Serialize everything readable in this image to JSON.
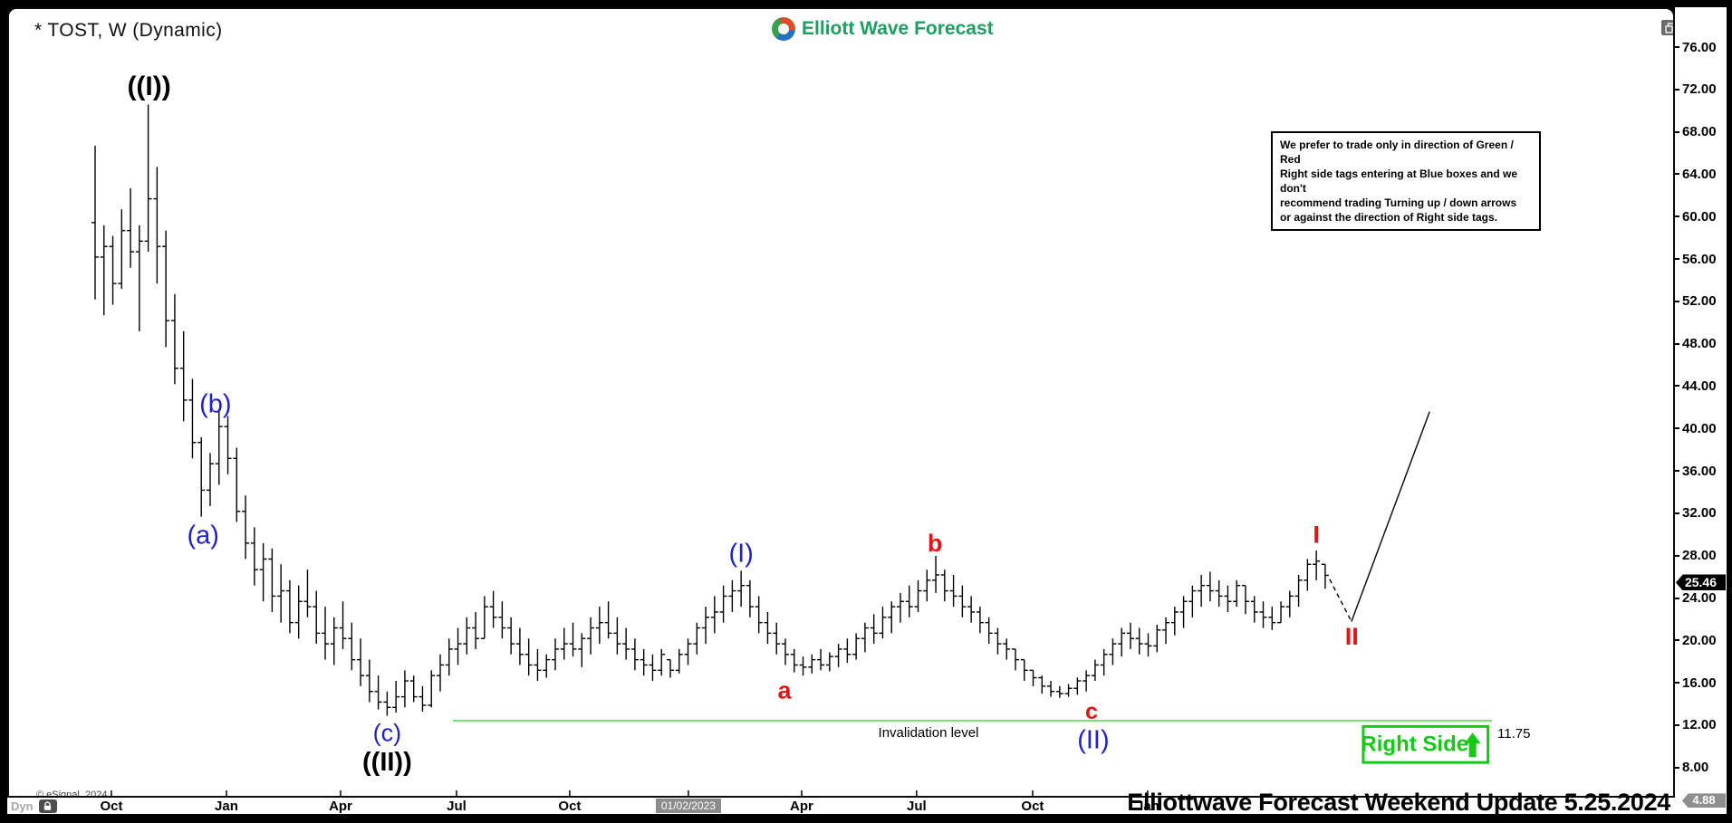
{
  "window": {
    "title": "* TOST, W (Dynamic)",
    "brand": "Elliott Wave Forecast",
    "copyright": "© eSignal, 2024",
    "tab_label": "Dyn",
    "footer_note": "Elliottwave Forecast Weekend Update 5.25.2024"
  },
  "info_box": {
    "lines": [
      "We prefer to trade only in direction of Green / Red",
      "Right side tags entering at Blue boxes and we don't",
      "recommend trading Turning up / down arrows",
      "or against the direction of Right side tags."
    ]
  },
  "annotations": {
    "invalidation_label": "Invalidation level",
    "invalidation_price_label": "11.75",
    "right_side_label": "Right Side",
    "last_price": "25.46",
    "low_badge": "4.88",
    "crosshair_date": "01/02/2023"
  },
  "colors": {
    "blue": "#2121cc",
    "red": "#e61414",
    "black": "#000000",
    "green_line": "#55dd55",
    "green_box": "#16c916",
    "brand": "#1f9e63",
    "logo_g": "#35a14c",
    "logo_r": "#d94f2b",
    "logo_b": "#2272bd",
    "bar": "#000000"
  },
  "wave_labels": [
    {
      "text": "((I))",
      "week": 6.1,
      "price": 71.6,
      "color": "black",
      "size": 30,
      "weight": 600
    },
    {
      "text": "(b)",
      "week": 13.6,
      "price": 41.6,
      "color": "blue",
      "size": 29,
      "weight": 400
    },
    {
      "text": "(a)",
      "week": 12.2,
      "price": 29.2,
      "color": "blue",
      "size": 29,
      "weight": 400
    },
    {
      "text": "(c)",
      "week": 33.0,
      "price": 10.6,
      "color": "blue",
      "size": 27,
      "weight": 400
    },
    {
      "text": "((II))",
      "week": 33.0,
      "price": 7.8,
      "color": "black",
      "size": 29,
      "weight": 600
    },
    {
      "text": "(I)",
      "week": 73.0,
      "price": 27.5,
      "color": "blue",
      "size": 29,
      "weight": 400
    },
    {
      "text": "a",
      "week": 77.9,
      "price": 14.6,
      "color": "red",
      "size": 27,
      "weight": 700
    },
    {
      "text": "b",
      "week": 94.9,
      "price": 28.5,
      "color": "red",
      "size": 27,
      "weight": 700
    },
    {
      "text": "c",
      "week": 112.6,
      "price": 12.6,
      "color": "red",
      "size": 25,
      "weight": 700
    },
    {
      "text": "(II)",
      "week": 112.8,
      "price": 9.9,
      "color": "blue",
      "size": 29,
      "weight": 400
    },
    {
      "text": "I",
      "week": 138.0,
      "price": 29.3,
      "color": "red",
      "size": 27,
      "weight": 700
    },
    {
      "text": "II",
      "week": 142.0,
      "price": 19.7,
      "color": "red",
      "size": 27,
      "weight": 700
    }
  ],
  "chart_data": {
    "type": "bar",
    "subtype": "ohlc-weekly",
    "symbol": "TOST",
    "timeframe": "W (Dynamic)",
    "ylim": [
      4.5,
      78
    ],
    "y_ticks": [
      76,
      72,
      68,
      64,
      60,
      56,
      52,
      48,
      44,
      40,
      36,
      32,
      28,
      24,
      20,
      16,
      12,
      8
    ],
    "x_ticks": [
      {
        "label": "Oct",
        "week": 1.84
      },
      {
        "label": "Jan",
        "week": 14.84
      },
      {
        "label": "Apr",
        "week": 27.74
      },
      {
        "label": "Jul",
        "week": 40.84
      },
      {
        "label": "Oct",
        "week": 53.63
      },
      {
        "label": "01/02/2023",
        "week": 67.04,
        "badge": true
      },
      {
        "label": "Apr",
        "week": 79.84
      },
      {
        "label": "Jul",
        "week": 92.83
      },
      {
        "label": "Oct",
        "week": 105.94
      },
      {
        "label": "Jan",
        "week": 118.94
      }
    ],
    "last_close": 25.46,
    "low_marker": 4.88,
    "invalidation": {
      "price": 11.75,
      "week_start": 40.4,
      "week_end": 157.85
    },
    "invalidation_text_week": 88.5,
    "projection": {
      "dashed": [
        [
          139.5,
          25.1
        ],
        [
          141.97,
          21.1
        ]
      ],
      "solid": [
        [
          141.97,
          21.1
        ],
        [
          150.8,
          40.9
        ]
      ]
    },
    "right_side_box": {
      "week_start": 143.3,
      "week_end": 157.4,
      "price_top": 11.2,
      "price_bottom": 7.8
    },
    "bars_format": [
      "high",
      "low",
      "close"
    ],
    "bars": [
      [
        66,
        51.5,
        55.5
      ],
      [
        58.5,
        50,
        56.5
      ],
      [
        57.5,
        51,
        53
      ],
      [
        60,
        52.5,
        58
      ],
      [
        62,
        54.5,
        56
      ],
      [
        58.5,
        48.5,
        57
      ],
      [
        69.9,
        56,
        61
      ],
      [
        64,
        53,
        56.5
      ],
      [
        58,
        47,
        49.5
      ],
      [
        52,
        43.5,
        45
      ],
      [
        48.5,
        40,
        42
      ],
      [
        44,
        36.5,
        38
      ],
      [
        38.5,
        31,
        33.5
      ],
      [
        37,
        32,
        36
      ],
      [
        41,
        34,
        39.5
      ],
      [
        40.5,
        35,
        36.5
      ],
      [
        37.5,
        30.5,
        31.5
      ],
      [
        33,
        27,
        28.5
      ],
      [
        30,
        24.5,
        26
      ],
      [
        28.5,
        23,
        27
      ],
      [
        28,
        22,
        23.5
      ],
      [
        26.5,
        21,
        24
      ],
      [
        25,
        20,
        21
      ],
      [
        24.5,
        19.5,
        23
      ],
      [
        26,
        21.5,
        22.5
      ],
      [
        24,
        19,
        20
      ],
      [
        22.5,
        17.5,
        19
      ],
      [
        21.5,
        17,
        20.5
      ],
      [
        23,
        18.5,
        19.5
      ],
      [
        21,
        16.5,
        17.5
      ],
      [
        19.5,
        15,
        16
      ],
      [
        17.5,
        13.5,
        14.5
      ],
      [
        16,
        12.8,
        13.5
      ],
      [
        14.5,
        12.2,
        13
      ],
      [
        15.5,
        12.5,
        14
      ],
      [
        16.5,
        13,
        15.5
      ],
      [
        16,
        13.5,
        14
      ],
      [
        15,
        12.6,
        13.2
      ],
      [
        16.5,
        13,
        16
      ],
      [
        18,
        14.5,
        17
      ],
      [
        19.5,
        16,
        18.5
      ],
      [
        20.5,
        17,
        19
      ],
      [
        21.5,
        18,
        20.5
      ],
      [
        22,
        18.5,
        19.5
      ],
      [
        23.5,
        19.5,
        22.5
      ],
      [
        24,
        20.5,
        21.5
      ],
      [
        23,
        19.5,
        20.5
      ],
      [
        21.5,
        18,
        19
      ],
      [
        20.5,
        17,
        18
      ],
      [
        19.5,
        16,
        17
      ],
      [
        18.5,
        15.5,
        16.5
      ],
      [
        18,
        15.8,
        17.5
      ],
      [
        19.5,
        16.5,
        18.5
      ],
      [
        20.5,
        17.5,
        19
      ],
      [
        21,
        17.8,
        18.5
      ],
      [
        20,
        16.8,
        19.5
      ],
      [
        21.5,
        18,
        20.5
      ],
      [
        22.5,
        19,
        21
      ],
      [
        23,
        19.5,
        20
      ],
      [
        21.5,
        18,
        19
      ],
      [
        20.5,
        17.5,
        18.5
      ],
      [
        19.5,
        16.5,
        17.5
      ],
      [
        18.5,
        16,
        17
      ],
      [
        18,
        15.5,
        16.5
      ],
      [
        18.5,
        16,
        18
      ],
      [
        17.5,
        15.8,
        16.5
      ],
      [
        18.5,
        16.2,
        18
      ],
      [
        19.5,
        17,
        19
      ],
      [
        21,
        18,
        20.5
      ],
      [
        22.5,
        19,
        21.5
      ],
      [
        23.5,
        20,
        22
      ],
      [
        24.5,
        21,
        23.5
      ],
      [
        25,
        22,
        24
      ],
      [
        25.9,
        22.5,
        24.5
      ],
      [
        25,
        21.5,
        22.5
      ],
      [
        23.5,
        20,
        21
      ],
      [
        22,
        19,
        20
      ],
      [
        21,
        18,
        19
      ],
      [
        19.5,
        17,
        18
      ],
      [
        18.5,
        16.3,
        17
      ],
      [
        17.8,
        16,
        16.8
      ],
      [
        18,
        16.2,
        17.5
      ],
      [
        18.5,
        16.5,
        17
      ],
      [
        18.2,
        16.4,
        17.8
      ],
      [
        19,
        16.8,
        18.5
      ],
      [
        19.5,
        17.2,
        18
      ],
      [
        20,
        17.5,
        19.5
      ],
      [
        21,
        18.2,
        20.5
      ],
      [
        21.8,
        19,
        20
      ],
      [
        22.5,
        19.5,
        21.5
      ],
      [
        23,
        20,
        22.5
      ],
      [
        23.8,
        21,
        23
      ],
      [
        24.5,
        21.5,
        22.5
      ],
      [
        25,
        22,
        24
      ],
      [
        26,
        23,
        25
      ],
      [
        27.3,
        23.8,
        25.5
      ],
      [
        26,
        23,
        24
      ],
      [
        25.5,
        22.5,
        23.5
      ],
      [
        24.5,
        21.5,
        22.5
      ],
      [
        23.5,
        21,
        22
      ],
      [
        22.5,
        20,
        21
      ],
      [
        21.5,
        19,
        20
      ],
      [
        20.5,
        18,
        19
      ],
      [
        19.5,
        17.5,
        18.5
      ],
      [
        18.5,
        16.5,
        17.5
      ],
      [
        17.5,
        15.5,
        16.5
      ],
      [
        16.5,
        15,
        15.8
      ],
      [
        16,
        14.3,
        15
      ],
      [
        15.5,
        14,
        14.5
      ],
      [
        15,
        13.9,
        14.3
      ],
      [
        15.2,
        14,
        14.8
      ],
      [
        15.8,
        14.2,
        15.5
      ],
      [
        16.5,
        14.5,
        16
      ],
      [
        17.5,
        15.5,
        17
      ],
      [
        18.5,
        16,
        18
      ],
      [
        19.5,
        17,
        19
      ],
      [
        20.5,
        17.8,
        20
      ],
      [
        21,
        18.5,
        19.5
      ],
      [
        20.5,
        18,
        19
      ],
      [
        20,
        17.8,
        18.8
      ],
      [
        20.8,
        18.2,
        20.3
      ],
      [
        21.5,
        19,
        21
      ],
      [
        22.5,
        19.8,
        22
      ],
      [
        23.5,
        20.5,
        23
      ],
      [
        24.5,
        21.5,
        24
      ],
      [
        25.5,
        22.5,
        24.5
      ],
      [
        25.8,
        23,
        24
      ],
      [
        25,
        22.5,
        23.5
      ],
      [
        24.5,
        22,
        23
      ],
      [
        25,
        22.5,
        24.5
      ],
      [
        24.5,
        21.8,
        23
      ],
      [
        23.5,
        21,
        22
      ],
      [
        23,
        20.5,
        21.5
      ],
      [
        22.5,
        20.3,
        21
      ],
      [
        23,
        21,
        22.5
      ],
      [
        24,
        21.5,
        23.5
      ],
      [
        25.5,
        22.5,
        25
      ],
      [
        27,
        24,
        26.5
      ],
      [
        27.8,
        25,
        26.8
      ],
      [
        26.5,
        24.2,
        25.46
      ]
    ]
  }
}
